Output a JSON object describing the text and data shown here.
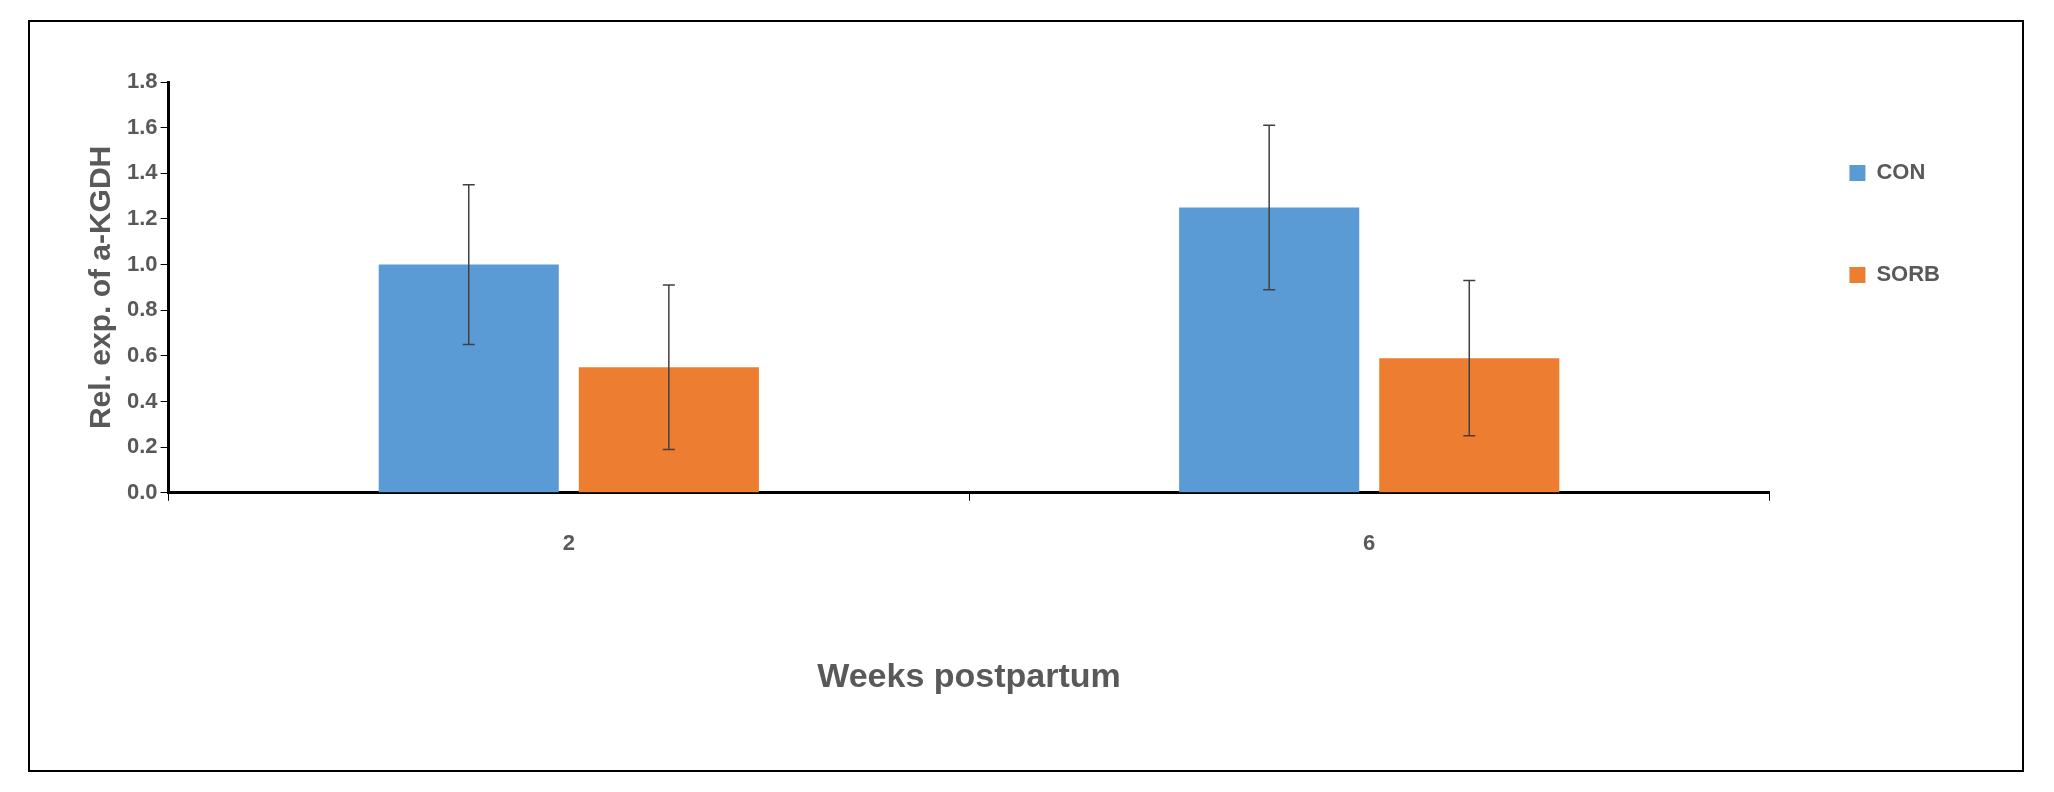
{
  "chart_data": {
    "type": "bar",
    "xlabel": "Weeks postpartum",
    "ylabel": "Rel. exp. of a-KGDH",
    "categories": [
      "2",
      "6"
    ],
    "series": [
      {
        "name": "CON",
        "color": "#5b9bd5",
        "values": [
          1.0,
          1.25
        ],
        "errors": [
          0.35,
          0.36
        ]
      },
      {
        "name": "SORB",
        "color": "#ed7d31",
        "values": [
          0.55,
          0.59
        ],
        "errors": [
          0.36,
          0.34
        ]
      }
    ],
    "ylim": [
      0,
      1.8
    ],
    "yticks": [
      {
        "value": 0,
        "label": "0.0"
      },
      0.2,
      0.4,
      0.6,
      0.8,
      {
        "value": 1,
        "label": "1.0"
      },
      1.2,
      1.4,
      1.6,
      1.8
    ],
    "grid": false,
    "legend": "top right"
  }
}
